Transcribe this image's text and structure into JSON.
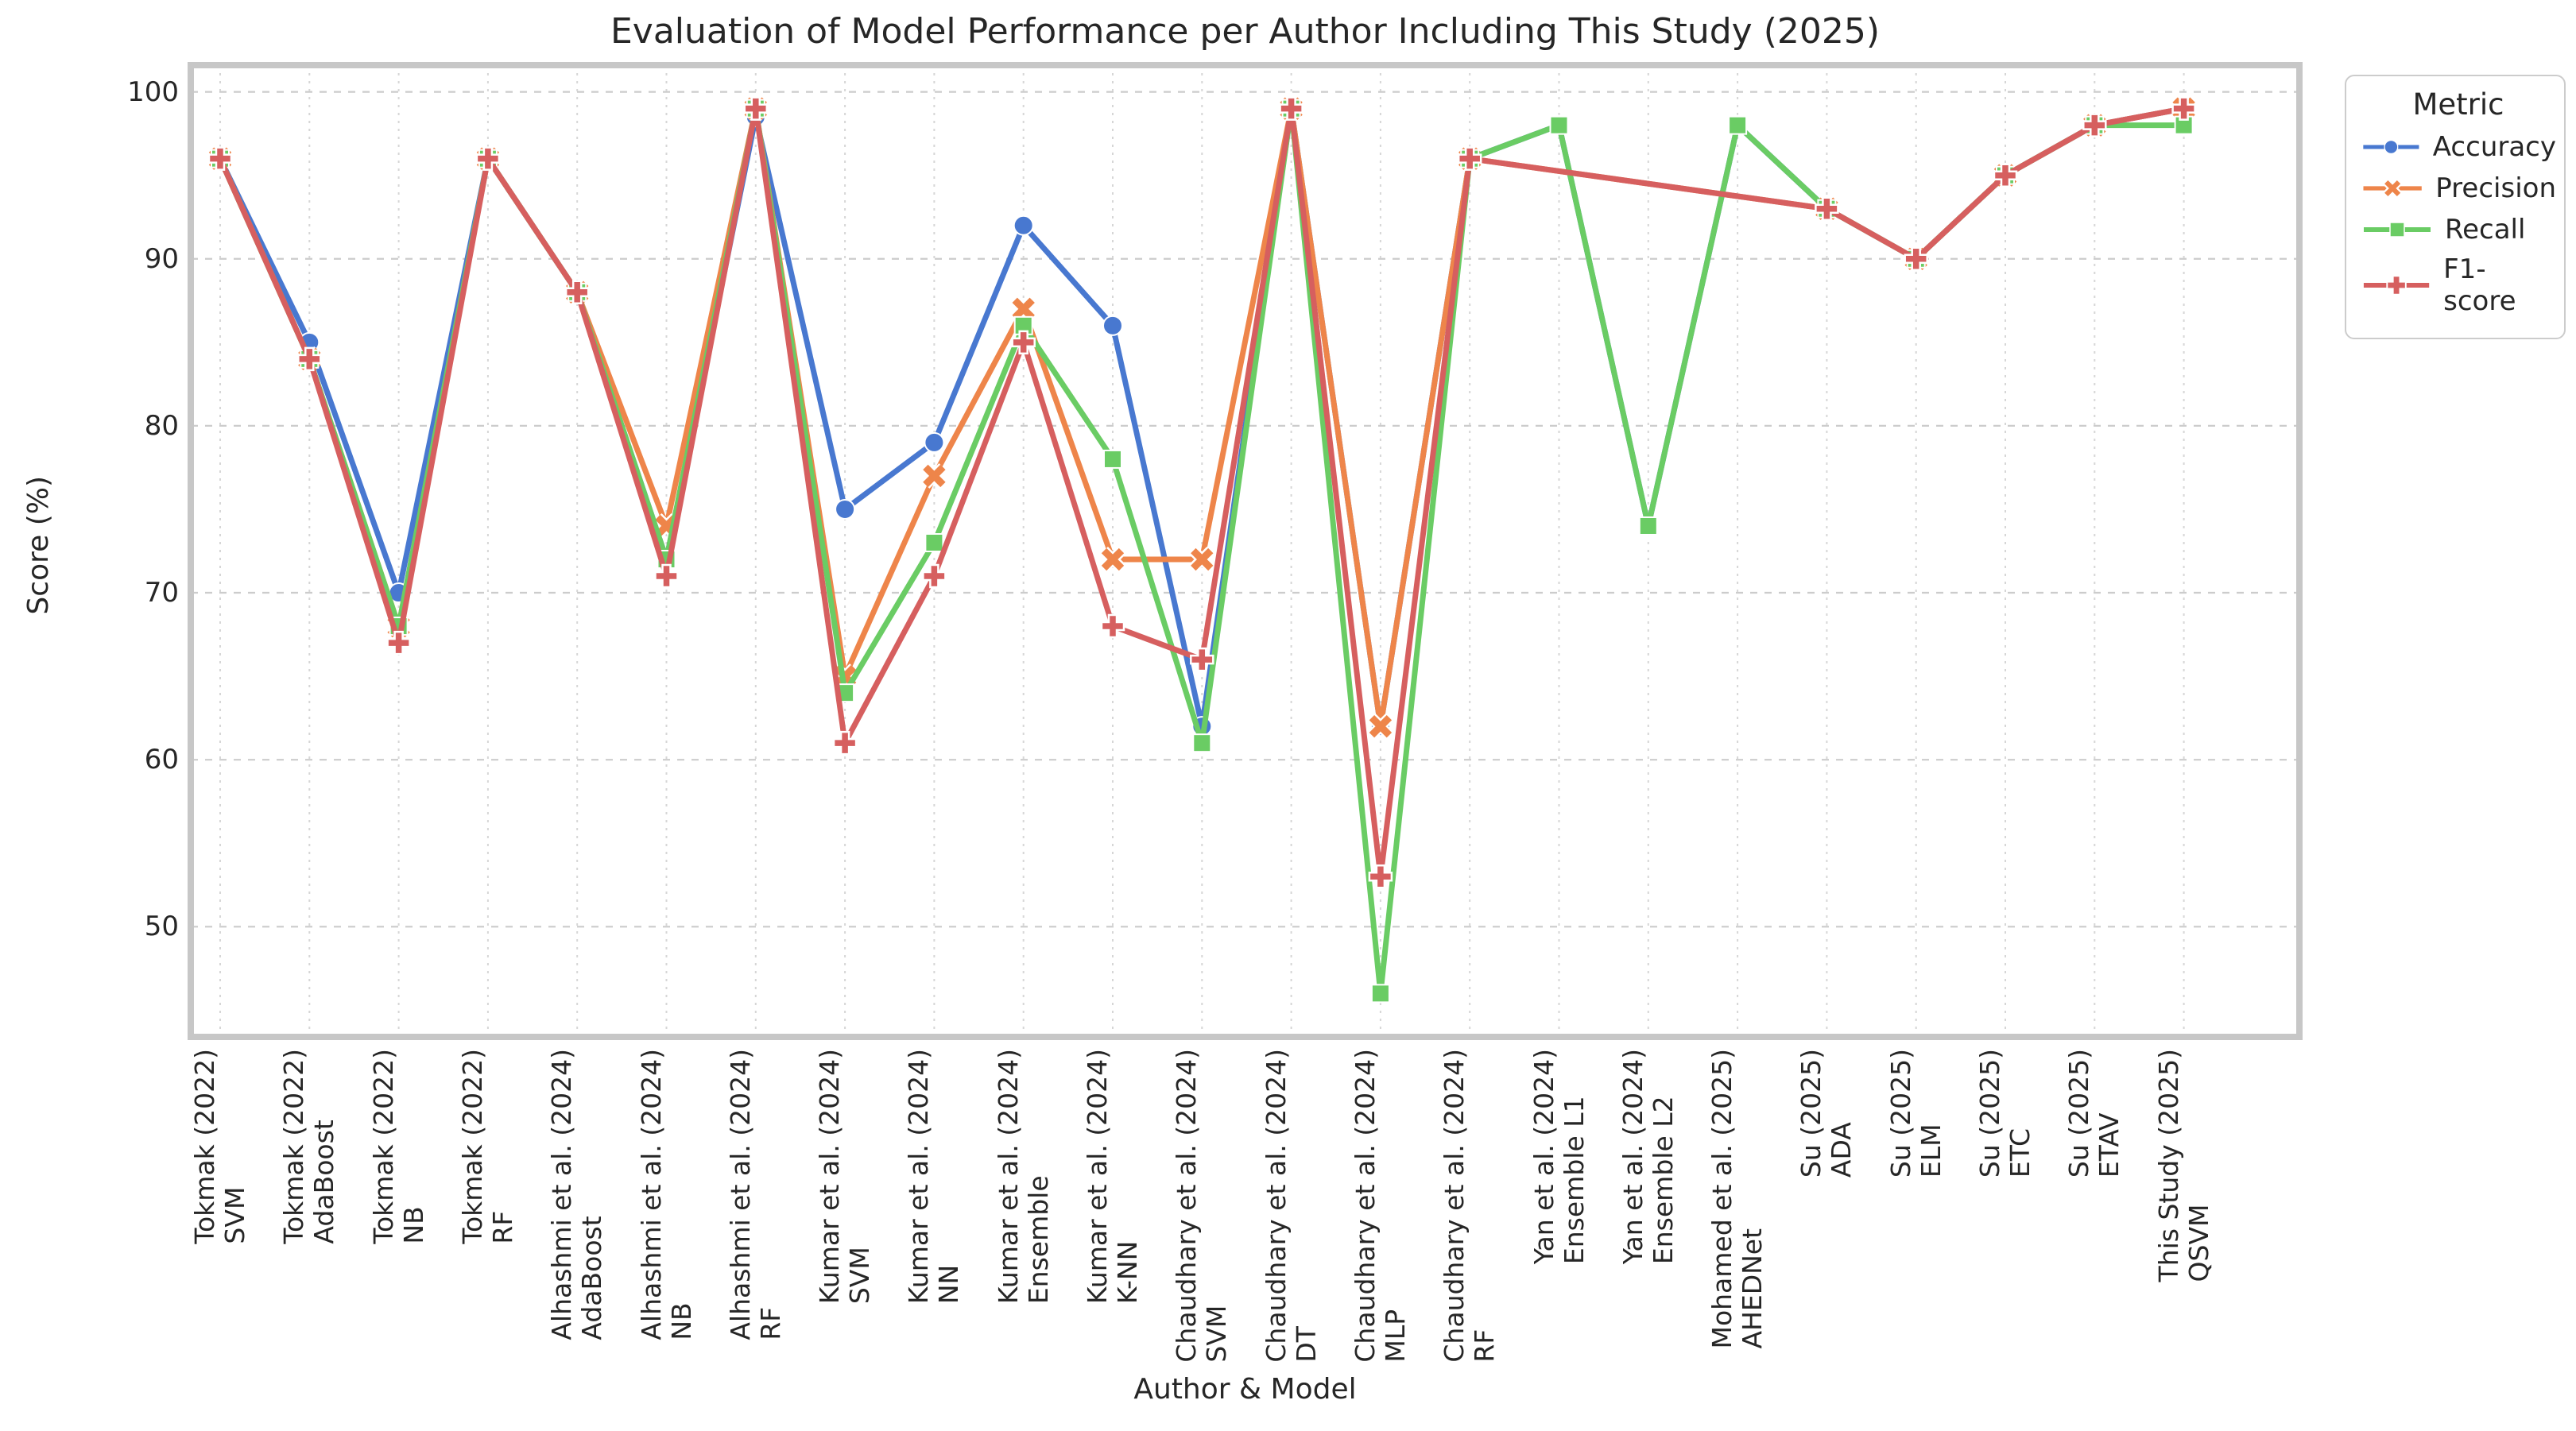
{
  "title": "Evaluation of Model Performance per Author Including This Study (2025)",
  "axes": {
    "x_label": "Author & Model",
    "y_label": "Score (%)",
    "y_ticks": [
      50,
      60,
      70,
      80,
      90,
      100
    ]
  },
  "legend": {
    "title": "Metric"
  },
  "colors": {
    "accuracy": "#4878d0",
    "precision": "#ee854a",
    "recall": "#6acc64",
    "f1": "#d65f5f",
    "grid": "#cccccc",
    "frame": "#c7c7c7",
    "text": "#262626",
    "background": "#ffffff"
  },
  "chart_data": {
    "type": "line",
    "title": "Evaluation of Model Performance per Author Including This Study (2025)",
    "xlabel": "Author & Model",
    "ylabel": "Score (%)",
    "ylim": [
      43.4,
      101.6
    ],
    "y_ticks": [
      50,
      60,
      70,
      80,
      90,
      100
    ],
    "grid": true,
    "legend_title": "Metric",
    "legend_position": "outside upper right",
    "categories": [
      [
        "Tokmak (2022)",
        "SVM"
      ],
      [
        "Tokmak (2022)",
        "AdaBoost"
      ],
      [
        "Tokmak (2022)",
        "NB"
      ],
      [
        "Tokmak (2022)",
        "RF"
      ],
      [
        "Alhashmi et al. (2024)",
        "AdaBoost"
      ],
      [
        "Alhashmi et al. (2024)",
        "NB"
      ],
      [
        "Alhashmi et al. (2024)",
        "RF"
      ],
      [
        "Kumar et al. (2024)",
        "SVM"
      ],
      [
        "Kumar et al. (2024)",
        "NN"
      ],
      [
        "Kumar et al. (2024)",
        "Ensemble"
      ],
      [
        "Kumar et al. (2024)",
        "K-NN"
      ],
      [
        "Chaudhary et al. (2024)",
        "SVM"
      ],
      [
        "Chaudhary et al. (2024)",
        "DT"
      ],
      [
        "Chaudhary et al. (2024)",
        "MLP"
      ],
      [
        "Chaudhary et al. (2024)",
        "RF"
      ],
      [
        "Yan et al. (2024)",
        "Ensemble L1"
      ],
      [
        "Yan et al. (2024)",
        "Ensemble L2"
      ],
      [
        "Mohamed et al. (2025)",
        "AHEDNet"
      ],
      [
        "Su (2025)",
        "ADA"
      ],
      [
        "Su (2025)",
        "ELM"
      ],
      [
        "Su (2025)",
        "ETC"
      ],
      [
        "Su (2025)",
        "ETAV"
      ],
      [
        "This Study (2025)",
        "QSVM"
      ]
    ],
    "series": [
      {
        "name": "Accuracy",
        "color": "#4878d0",
        "marker": "circle",
        "values": [
          96,
          85,
          70,
          96,
          88,
          72,
          98.5,
          75,
          79,
          92,
          86,
          62,
          99,
          62,
          96,
          98,
          74,
          98,
          93,
          90,
          95,
          98,
          99
        ]
      },
      {
        "name": "Precision",
        "color": "#ee854a",
        "marker": "x",
        "values": [
          96,
          84,
          68,
          96,
          88,
          74,
          99,
          65,
          77,
          87,
          72,
          72,
          99,
          62,
          96,
          null,
          null,
          null,
          93,
          90,
          95,
          98,
          99
        ]
      },
      {
        "name": "Recall",
        "color": "#6acc64",
        "marker": "square",
        "values": [
          96,
          84,
          68,
          96,
          88,
          72,
          99,
          64,
          73,
          86,
          78,
          61,
          99,
          46,
          96,
          98,
          74,
          98,
          93,
          90,
          95,
          98,
          98
        ]
      },
      {
        "name": "F1-score",
        "color": "#d65f5f",
        "marker": "plus",
        "values": [
          96,
          84,
          67,
          96,
          88,
          71,
          99,
          61,
          71,
          85,
          68,
          66,
          99,
          53,
          96,
          null,
          null,
          null,
          93,
          90,
          95,
          98,
          99
        ]
      }
    ]
  }
}
